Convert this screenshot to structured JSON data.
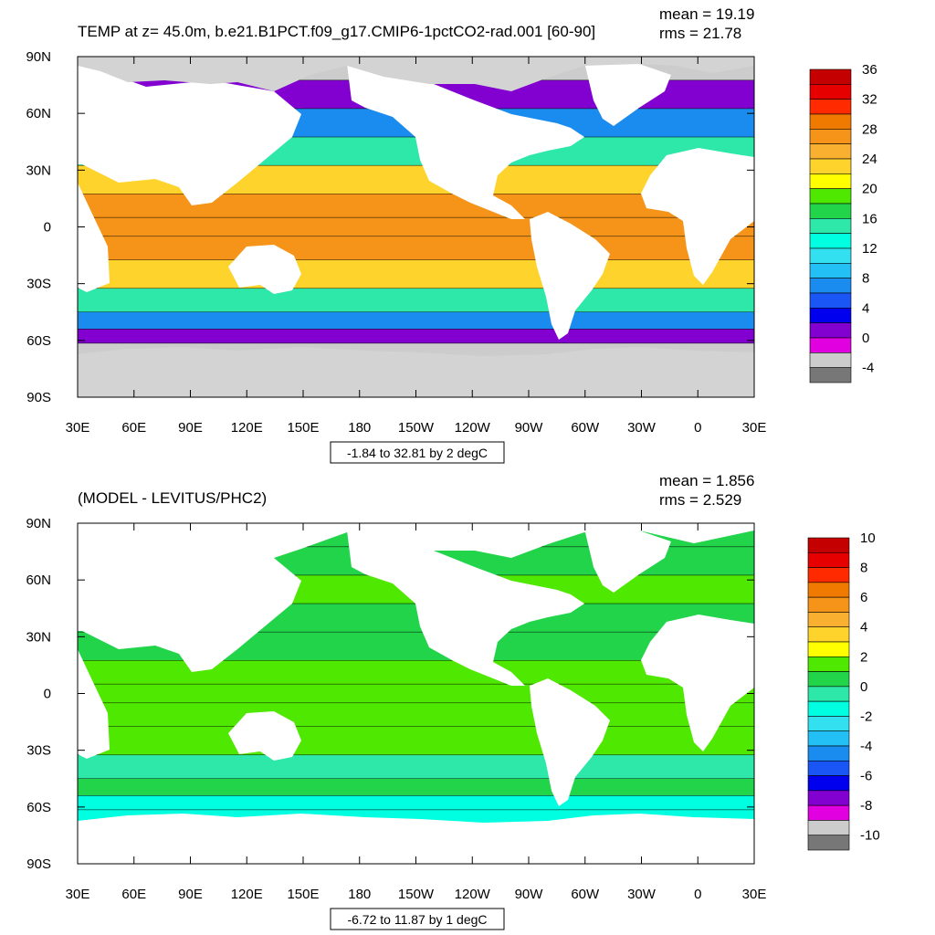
{
  "colors": {
    "land": "#ffffff",
    "ice": "#d3d3d3",
    "frame": "#000000"
  },
  "chart_data": [
    {
      "type": "heatmap",
      "title": "TEMP at z=  45.0m, b.e21.B1PCT.f09_g17.CMIP6-1pctCO2-rad.001 [60-90]",
      "stats": [
        "mean = 19.19",
        "rms = 21.78"
      ],
      "xlabel": "",
      "ylabel": "",
      "x_ticks": [
        "30E",
        "60E",
        "90E",
        "120E",
        "150E",
        "180",
        "150W",
        "120W",
        "90W",
        "60W",
        "30W",
        "0",
        "30E"
      ],
      "y_ticks": [
        "90N",
        "60N",
        "30N",
        "0",
        "30S",
        "60S",
        "90S"
      ],
      "xlim": [
        30,
        390
      ],
      "ylim": [
        -90,
        90
      ],
      "range_label": "-1.84 to 32.81 by 2 degC",
      "colorbar": {
        "labels": [
          "36",
          "32",
          "28",
          "24",
          "20",
          "16",
          "12",
          "8",
          "4",
          "0",
          "-4"
        ],
        "colors": [
          "#c40000",
          "#e60000",
          "#ff2a00",
          "#f07a00",
          "#f59418",
          "#f9b030",
          "#fdd32c",
          "#ffff00",
          "#4fe800",
          "#22d44a",
          "#2de8a8",
          "#00ffe0",
          "#33e0f0",
          "#22c0f5",
          "#1a8cf0",
          "#1a55f5",
          "#0000ee",
          "#8200d0",
          "#e000e0",
          "#cccccc",
          "#777777"
        ]
      },
      "field": {
        "lat": [
          85,
          70,
          55,
          40,
          25,
          10,
          0,
          -10,
          -25,
          -40,
          -50,
          -58,
          -65
        ],
        "values": [
          -1.5,
          3,
          8,
          16,
          24,
          27,
          28,
          27,
          24,
          16,
          8,
          2,
          -1
        ]
      }
    },
    {
      "type": "heatmap",
      "title": "(MODEL - LEVITUS/PHC2)",
      "stats": [
        "mean = 1.856",
        "rms = 2.529"
      ],
      "xlabel": "",
      "ylabel": "",
      "x_ticks": [
        "30E",
        "60E",
        "90E",
        "120E",
        "150E",
        "180",
        "150W",
        "120W",
        "90W",
        "60W",
        "30W",
        "0",
        "30E"
      ],
      "y_ticks": [
        "90N",
        "60N",
        "30N",
        "0",
        "30S",
        "60S",
        "90S"
      ],
      "xlim": [
        30,
        390
      ],
      "ylim": [
        -90,
        90
      ],
      "range_label": "-6.72 to 11.87 by 1 degC",
      "colorbar": {
        "labels": [
          "10",
          "8",
          "6",
          "4",
          "2",
          "0",
          "-2",
          "-4",
          "-6",
          "-8",
          "-10"
        ],
        "colors": [
          "#c40000",
          "#e60000",
          "#ff2a00",
          "#f07a00",
          "#f59418",
          "#f9b030",
          "#fdd32c",
          "#ffff00",
          "#4fe800",
          "#22d44a",
          "#2de8a8",
          "#00ffe0",
          "#33e0f0",
          "#22c0f5",
          "#1a8cf0",
          "#1a55f5",
          "#0000ee",
          "#8200d0",
          "#e000e0",
          "#cccccc",
          "#777777"
        ]
      },
      "field": {
        "lat": [
          85,
          70,
          55,
          40,
          25,
          10,
          0,
          -10,
          -25,
          -40,
          -50,
          -58,
          -65
        ],
        "values": [
          1,
          1,
          2,
          1,
          1,
          2,
          2,
          2,
          2,
          0,
          1,
          -1,
          -1
        ]
      }
    }
  ]
}
